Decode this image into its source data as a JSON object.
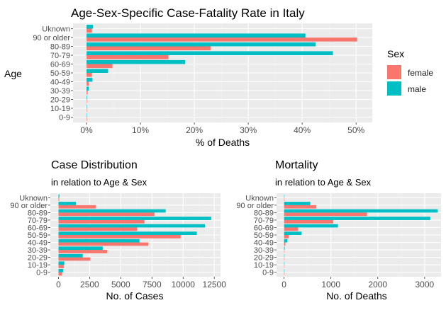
{
  "colors": {
    "female": "#F8766D",
    "male": "#00BFC4",
    "panel_bg": "#EBEBEB",
    "grid_major": "#FFFFFF",
    "grid_minor": "#F2F2F2",
    "text": "#1A1A1A",
    "tick_text": "#4D4D4D"
  },
  "legend": {
    "title": "Sex",
    "entries": [
      {
        "key": "female",
        "label": "female"
      },
      {
        "key": "male",
        "label": "male"
      }
    ]
  },
  "chart_data": [
    {
      "id": "cfr",
      "type": "bar",
      "orientation": "horizontal",
      "title": "Age-Sex-Specific Case-Fatality Rate in Italy",
      "subtitle": "",
      "xlabel": "% of Deaths",
      "ylabel": "Age",
      "categories": [
        "0-9",
        "10-19",
        "20-29",
        "30-39",
        "40-49",
        "50-59",
        "60-69",
        "70-79",
        "80-89",
        "90 or older",
        "Uknown"
      ],
      "xlim": [
        -0.025,
        0.53
      ],
      "xticks": [
        0,
        0.1,
        0.2,
        0.3,
        0.4,
        0.5
      ],
      "xtick_labels": [
        "0%",
        "10%",
        "20%",
        "30%",
        "40%",
        "50%"
      ],
      "series": [
        {
          "name": "female",
          "values": [
            0,
            0,
            0,
            0.002,
            0.004,
            0.01,
            0.048,
            0.152,
            0.23,
            0.502,
            0.01
          ]
        },
        {
          "name": "male",
          "values": [
            0,
            0,
            0.001,
            0.004,
            0.011,
            0.04,
            0.183,
            0.457,
            0.425,
            0.406,
            0.012
          ]
        }
      ],
      "grid": true,
      "legend": "right"
    },
    {
      "id": "cases",
      "type": "bar",
      "orientation": "horizontal",
      "title": "Case Distribution",
      "subtitle": "in relation to Age & Sex",
      "xlabel": "No. of Cases",
      "ylabel": "",
      "categories": [
        "0-9",
        "10-19",
        "20-29",
        "30-39",
        "40-49",
        "50-59",
        "60-69",
        "70-79",
        "80-89",
        "90 or older",
        "Uknown"
      ],
      "xlim": [
        -650,
        13000
      ],
      "xticks": [
        0,
        2500,
        5000,
        7500,
        10000,
        12500
      ],
      "xtick_labels": [
        "0",
        "2500",
        "5000",
        "7500",
        "10000",
        "12500"
      ],
      "series": [
        {
          "name": "female",
          "values": [
            280,
            440,
            2550,
            3900,
            7200,
            9800,
            6300,
            6900,
            7700,
            3000,
            60
          ]
        },
        {
          "name": "male",
          "values": [
            380,
            470,
            1950,
            3550,
            6500,
            11100,
            11750,
            12250,
            8600,
            1400,
            80
          ]
        }
      ],
      "grid": true
    },
    {
      "id": "deaths",
      "type": "bar",
      "orientation": "horizontal",
      "title": "Mortality",
      "subtitle": "in relation to Age & Sex",
      "xlabel": "No. of Deaths",
      "ylabel": "",
      "categories": [
        "0-9",
        "10-19",
        "20-29",
        "30-39",
        "40-49",
        "50-59",
        "60-69",
        "70-79",
        "80-89",
        "90 or older",
        "Uknown"
      ],
      "xlim": [
        -160,
        3350
      ],
      "xticks": [
        0,
        1000,
        2000,
        3000
      ],
      "xtick_labels": [
        "0",
        "1000",
        "2000",
        "3000"
      ],
      "series": [
        {
          "name": "female",
          "values": [
            0,
            0,
            0,
            8,
            28,
            98,
            300,
            1050,
            1770,
            690,
            0
          ]
        },
        {
          "name": "male",
          "values": [
            0,
            0,
            2,
            15,
            72,
            375,
            1150,
            3120,
            3280,
            560,
            2
          ]
        }
      ],
      "grid": true
    }
  ]
}
